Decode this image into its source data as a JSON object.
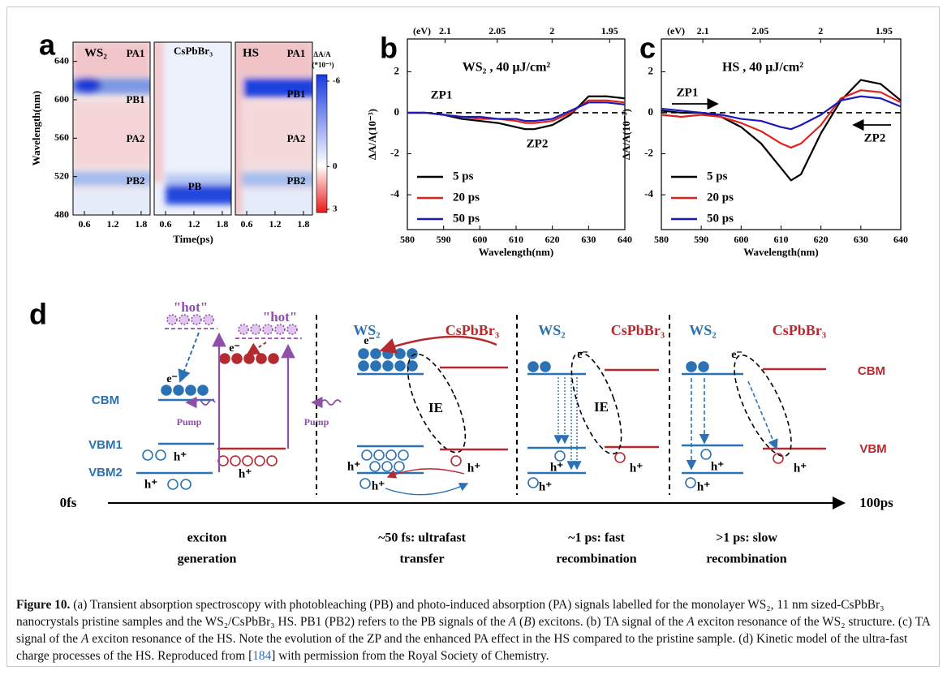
{
  "panel_labels": [
    "a",
    "b",
    "c",
    "d"
  ],
  "chart_data": [
    {
      "type": "heatmap",
      "xlabel": "Time(ps)",
      "ylabel": "Wavelength(nm)",
      "xlim": [
        0.36,
        1.99
      ],
      "xticks": [
        0.6,
        1.2,
        1.8
      ],
      "ylim": [
        480,
        660
      ],
      "yticks": [
        480,
        520,
        560,
        600,
        640
      ],
      "panels": [
        {
          "name": "WS₂",
          "labels": [
            "PA1",
            "PB1",
            "PA2",
            "PB2"
          ]
        },
        {
          "name": "CsPbBr₃",
          "labels": [
            "PB"
          ]
        },
        {
          "name": "HS",
          "labels": [
            "PA1",
            "PB1",
            "PA2",
            "PB2"
          ]
        }
      ],
      "colorbar": {
        "title": [
          "ΔA/A",
          "(*10⁻³)"
        ],
        "lim": [
          -6,
          3
        ],
        "ticks": [
          -6,
          0,
          3
        ]
      }
    },
    {
      "type": "line",
      "title": "WS₂ , 40 μJ/cm²",
      "annotations": [
        "ZP1",
        "ZP2"
      ],
      "xlabel": "Wavelength(nm)",
      "ylabel": "ΔA/A(10⁻³)",
      "x2label": "(eV)",
      "x": [
        580,
        585,
        590,
        595,
        600,
        605,
        610,
        612.5,
        615,
        620,
        625,
        630,
        635,
        640
      ],
      "xlim": [
        580,
        640
      ],
      "xticks": [
        580,
        590,
        600,
        610,
        620,
        630,
        640
      ],
      "x2ticks": [
        2.1,
        2.05,
        2,
        1.95
      ],
      "ylim": [
        -5.7,
        3.6
      ],
      "yticks": [
        -4,
        -2,
        0,
        2
      ],
      "series": [
        {
          "name": "5 ps",
          "color": "#000000",
          "values": [
            0,
            0,
            -0.1,
            -0.3,
            -0.4,
            -0.5,
            -0.7,
            -0.8,
            -0.8,
            -0.6,
            -0.1,
            0.8,
            0.8,
            0.7
          ]
        },
        {
          "name": "20 ps",
          "color": "#e0201b",
          "values": [
            0,
            0,
            -0.1,
            -0.2,
            -0.3,
            -0.3,
            -0.4,
            -0.5,
            -0.5,
            -0.4,
            0,
            0.6,
            0.6,
            0.5
          ]
        },
        {
          "name": "50 ps",
          "color": "#1a1ab8",
          "values": [
            0,
            0,
            -0.1,
            -0.2,
            -0.2,
            -0.3,
            -0.3,
            -0.4,
            -0.4,
            -0.3,
            0.1,
            0.5,
            0.5,
            0.4
          ]
        }
      ]
    },
    {
      "type": "line",
      "title": "HS , 40 μJ/cm²",
      "annotations": [
        "ZP1",
        "ZP2"
      ],
      "xlabel": "Wavelength(nm)",
      "ylabel": "ΔA/A(10⁻³)",
      "x2label": "(eV)",
      "x": [
        580,
        585,
        590,
        595,
        600,
        605,
        610,
        612.5,
        615,
        620,
        625,
        630,
        635,
        640
      ],
      "xlim": [
        580,
        640
      ],
      "xticks": [
        580,
        590,
        600,
        610,
        620,
        630,
        640
      ],
      "x2ticks": [
        2.1,
        2.05,
        2,
        1.95
      ],
      "ylim": [
        -5.7,
        3.6
      ],
      "yticks": [
        -4,
        -2,
        0,
        2
      ],
      "series": [
        {
          "name": "5 ps",
          "color": "#000000",
          "values": [
            0.1,
            0,
            0,
            -0.2,
            -0.7,
            -1.5,
            -2.7,
            -3.3,
            -3.0,
            -1.0,
            0.6,
            1.6,
            1.4,
            0.6
          ]
        },
        {
          "name": "20 ps",
          "color": "#e0201b",
          "values": [
            -0.1,
            -0.2,
            -0.1,
            -0.2,
            -0.5,
            -0.9,
            -1.5,
            -1.7,
            -1.5,
            -0.6,
            0.7,
            1.1,
            1.0,
            0.5
          ]
        },
        {
          "name": "50 ps",
          "color": "#1a1ab8",
          "values": [
            0.2,
            0.1,
            0,
            -0.1,
            -0.3,
            -0.4,
            -0.7,
            -0.8,
            -0.6,
            -0.1,
            0.6,
            0.8,
            0.7,
            0.3
          ]
        }
      ]
    }
  ],
  "diagram": {
    "time_axis": [
      "0fs",
      "100ps"
    ],
    "stages": [
      [
        "exciton",
        "generation"
      ],
      [
        "~50 fs: ultrafast",
        "transfer"
      ],
      [
        "~1 ps: fast",
        "recombination"
      ],
      [
        ">1 ps: slow",
        "recombination"
      ]
    ],
    "generation": {
      "hot": [
        "\"hot\"",
        "\"hot\""
      ],
      "levels": [
        "CBM",
        "VBM1",
        "VBM2"
      ],
      "pump": [
        "Pump",
        "Pump"
      ],
      "electrons": [
        "e⁻",
        "e⁻"
      ],
      "holes": [
        "h⁺",
        "h⁺",
        "h⁺"
      ]
    },
    "transfer": {
      "materials": [
        "WS₂",
        "CsPbBr₃"
      ],
      "exciton": "IE",
      "electrons": [
        "e⁻"
      ],
      "holes": [
        "h⁺",
        "h⁺",
        "h⁺"
      ]
    },
    "fast": {
      "materials": [
        "WS₂",
        "CsPbBr₃"
      ],
      "exciton": "IE",
      "electrons": [
        "e⁻"
      ],
      "holes": [
        "h⁺",
        "h⁺",
        "h⁺"
      ]
    },
    "slow": {
      "materials": [
        "WS₂",
        "CsPbBr₃"
      ],
      "levels": [
        "CBM",
        "VBM"
      ],
      "electrons": [
        "e⁻"
      ],
      "holes": [
        "h⁺",
        "h⁺",
        "h⁺"
      ]
    }
  },
  "caption": {
    "runs": [
      "Figure 10.",
      " (a) Transient absorption spectroscopy with photobleaching (PB) and photo-induced absorption (PA) signals labelled for the monolayer WS₂, 11 nm sized-CsPbBr₃ nanocrystals pristine samples and the WS₂/CsPbBr₃ HS. PB1 (PB2) refers to the PB signals of the ",
      "A",
      " (",
      "B",
      ") excitons. (b) TA signal of the ",
      "A",
      " exciton resonance of the WS₂ structure. (c) TA signal of the ",
      "A",
      " exciton resonance of the HS. Note the evolution of the ZP and the enhanced PA effect in the HS compared to the pristine sample. (d) Kinetic model of the ultra-fast charge processes of the HS. Reproduced from [",
      "184",
      "] with permission from the Royal Society of Chemistry."
    ]
  }
}
